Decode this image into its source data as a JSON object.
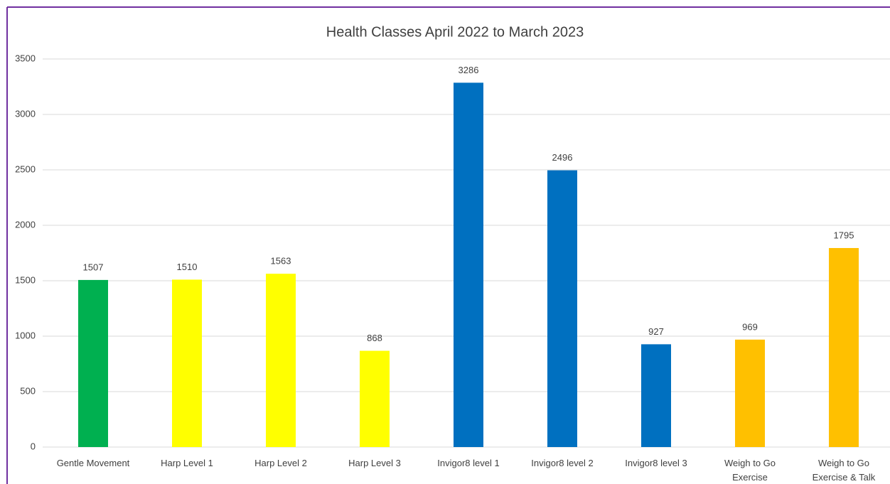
{
  "chart_data": {
    "type": "bar",
    "title": "Health Classes April 2022 to March 2023",
    "categories": [
      "Gentle Movement",
      "Harp Level 1",
      "Harp Level 2",
      "Harp Level 3",
      "Invigor8 level 1",
      "Invigor8 level 2",
      "Invigor8 level 3",
      "Weigh to Go Exercise",
      "Weigh to Go Exercise & Talk"
    ],
    "values": [
      1507,
      1510,
      1563,
      868,
      3286,
      2496,
      927,
      969,
      1795
    ],
    "colors": [
      "#00b050",
      "#ffff00",
      "#ffff00",
      "#ffff00",
      "#0070c0",
      "#0070c0",
      "#0070c0",
      "#ffc000",
      "#ffc000"
    ],
    "ylim": [
      0,
      3500
    ],
    "yticks": [
      0,
      500,
      1000,
      1500,
      2000,
      2500,
      3000,
      3500
    ],
    "grid": true
  }
}
